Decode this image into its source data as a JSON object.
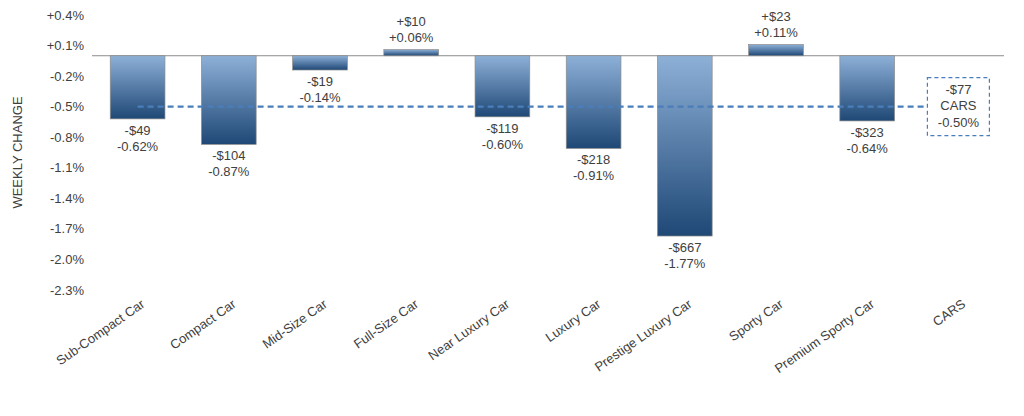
{
  "chart_data": {
    "type": "bar",
    "y_label": "WEEKLY CHANGE",
    "categories": [
      "Sub-Compact Car",
      "Compact Car",
      "Mid-Size Car",
      "Full-Size Car",
      "Near Luxury Car",
      "Luxury Car",
      "Prestige Luxury Car",
      "Sporty Car",
      "Premium Sporty Car",
      "CARS"
    ],
    "ylim": [
      -2.3,
      0.4
    ],
    "yticks": [
      {
        "value": 0.4,
        "label": "+0.4%"
      },
      {
        "value": 0.1,
        "label": "+0.1%"
      },
      {
        "value": -0.2,
        "label": "-0.2%"
      },
      {
        "value": -0.5,
        "label": "-0.5%"
      },
      {
        "value": -0.8,
        "label": "-0.8%"
      },
      {
        "value": -1.1,
        "label": "-1.1%"
      },
      {
        "value": -1.4,
        "label": "-1.4%"
      },
      {
        "value": -1.7,
        "label": "-1.7%"
      },
      {
        "value": -2.0,
        "label": "-2.0%"
      },
      {
        "value": -2.3,
        "label": "-2.3%"
      }
    ],
    "grid": false,
    "data_labels": true,
    "series": [
      {
        "type": "bar",
        "color": "#2f6fb6",
        "values": [
          -0.62,
          -0.87,
          -0.14,
          0.06,
          -0.6,
          -0.91,
          -1.77,
          0.11,
          -0.64,
          null
        ],
        "value_labels": [
          "-0.62%",
          "-0.87%",
          "-0.14%",
          "+0.06%",
          "-0.60%",
          "-0.91%",
          "-1.77%",
          "+0.11%",
          "-0.64%",
          null
        ],
        "dollar_labels": [
          "-$49",
          "-$104",
          "-$19",
          "+$10",
          "-$119",
          "-$218",
          "-$667",
          "+$23",
          "-$323",
          null
        ]
      },
      {
        "name": "CARS",
        "type": "hline",
        "line_style": "dashed",
        "color": "#4a7ebb",
        "values": [
          null,
          null,
          null,
          null,
          null,
          null,
          null,
          null,
          null,
          -0.5
        ],
        "value_labels": [
          null,
          null,
          null,
          null,
          null,
          null,
          null,
          null,
          null,
          "-0.50%"
        ],
        "dollar_labels": [
          null,
          null,
          null,
          null,
          null,
          null,
          null,
          null,
          null,
          "-$77"
        ]
      }
    ]
  }
}
